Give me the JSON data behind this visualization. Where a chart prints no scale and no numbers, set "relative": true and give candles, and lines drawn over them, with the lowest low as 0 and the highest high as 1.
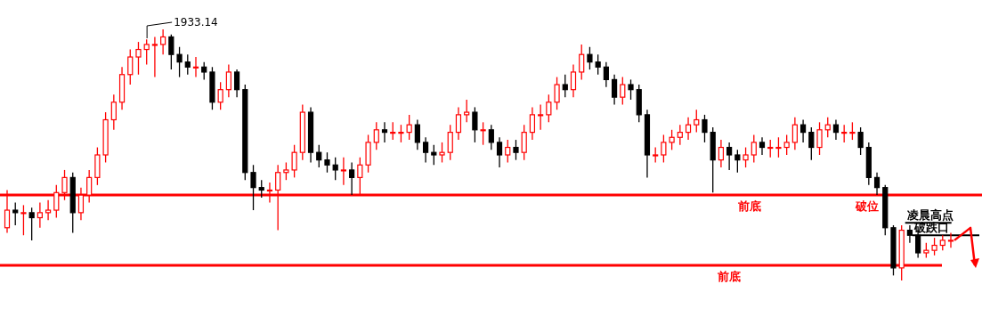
{
  "chart_data": {
    "type": "candlestick",
    "relative": true,
    "colors": [
      "#ff0000",
      "#000000",
      "#ff0000",
      "#000000",
      "#ff0000",
      "#ff0000",
      "#ff0000",
      "#ff0000",
      "#000000",
      "#ff0000",
      "#ff0000",
      "#ff0000",
      "#ff0000",
      "#ff0000",
      "#ff0000",
      "#ff0000",
      "#ff0000",
      "#ff0000",
      "#ff0000",
      "#ff0000",
      "#000000",
      "#000000",
      "#000000",
      "#ff0000",
      "#000000",
      "#000000",
      "#ff0000",
      "#ff0000",
      "#000000",
      "#000000",
      "#000000",
      "#000000",
      "#ff0000",
      "#ff0000",
      "#ff0000",
      "#ff0000",
      "#ff0000",
      "#000000",
      "#000000",
      "#000000",
      "#000000",
      "#ff0000",
      "#000000",
      "#ff0000",
      "#ff0000",
      "#ff0000",
      "#000000",
      "#ff0000",
      "#ff0000",
      "#ff0000",
      "#000000",
      "#000000",
      "#000000",
      "#ff0000",
      "#ff0000",
      "#ff0000",
      "#ff0000",
      "#000000",
      "#ff0000",
      "#000000",
      "#000000",
      "#ff0000",
      "#000000",
      "#ff0000",
      "#ff0000",
      "#ff0000",
      "#ff0000",
      "#ff0000",
      "#000000",
      "#ff0000",
      "#ff0000",
      "#000000",
      "#000000",
      "#000000",
      "#000000",
      "#ff0000",
      "#000000",
      "#000000",
      "#000000",
      "#ff0000",
      "#ff0000",
      "#ff0000",
      "#ff0000",
      "#ff0000",
      "#ff0000",
      "#000000",
      "#000000",
      "#ff0000",
      "#000000",
      "#000000",
      "#ff0000",
      "#ff0000",
      "#000000",
      "#ff0000",
      "#ff0000",
      "#ff0000",
      "#ff0000",
      "#000000",
      "#000000",
      "#ff0000",
      "#ff0000",
      "#000000",
      "#ff0000",
      "#ff0000",
      "#000000",
      "#000000",
      "#000000",
      "#000000",
      "#000000",
      "#ff0000",
      "#000000",
      "#000000",
      "#ff0000",
      "#ff0000",
      "#ff0000",
      "#ff0000"
    ],
    "categories": [
      null,
      null,
      null,
      null,
      null,
      null,
      null,
      null,
      null,
      null,
      null,
      null,
      null,
      null,
      null,
      null,
      null,
      null,
      null,
      null,
      null,
      null,
      null,
      null,
      null,
      null,
      null,
      null,
      null,
      null,
      null,
      null,
      null,
      null,
      null,
      null,
      null,
      null,
      null,
      null,
      null,
      null,
      null,
      null,
      null,
      null,
      null,
      null,
      null,
      null,
      null,
      null,
      null,
      null,
      null,
      null,
      null,
      null,
      null,
      null,
      null,
      null,
      null,
      null,
      null,
      null,
      null,
      null,
      null,
      null,
      null,
      null,
      null,
      null,
      null,
      null,
      null,
      null,
      null,
      null,
      null,
      null,
      null,
      null,
      null,
      null,
      null,
      null,
      null,
      null,
      null,
      null,
      null,
      null,
      null,
      null,
      null,
      null,
      null,
      null,
      null,
      null,
      null,
      null,
      null,
      null,
      null,
      null,
      null,
      null,
      null,
      null,
      null,
      null,
      null,
      null
    ],
    "ohlc": [
      [
        0.21,
        0.36,
        0.19,
        0.28
      ],
      [
        0.28,
        0.31,
        0.22,
        0.27
      ],
      [
        0.27,
        0.3,
        0.18,
        0.27
      ],
      [
        0.27,
        0.29,
        0.16,
        0.25
      ],
      [
        0.25,
        0.31,
        0.21,
        0.27
      ],
      [
        0.27,
        0.32,
        0.24,
        0.28
      ],
      [
        0.28,
        0.38,
        0.25,
        0.35
      ],
      [
        0.35,
        0.44,
        0.32,
        0.41
      ],
      [
        0.41,
        0.43,
        0.19,
        0.27
      ],
      [
        0.27,
        0.37,
        0.24,
        0.34
      ],
      [
        0.34,
        0.44,
        0.31,
        0.41
      ],
      [
        0.41,
        0.53,
        0.38,
        0.5
      ],
      [
        0.5,
        0.67,
        0.47,
        0.64
      ],
      [
        0.64,
        0.74,
        0.6,
        0.71
      ],
      [
        0.71,
        0.85,
        0.68,
        0.82
      ],
      [
        0.82,
        0.92,
        0.78,
        0.89
      ],
      [
        0.89,
        0.95,
        0.82,
        0.92
      ],
      [
        0.92,
        0.96,
        0.86,
        0.94
      ],
      [
        0.94,
        0.97,
        0.81,
        0.94
      ],
      [
        0.94,
        1.0,
        0.9,
        0.97
      ],
      [
        0.97,
        0.98,
        0.84,
        0.9
      ],
      [
        0.9,
        0.93,
        0.81,
        0.87
      ],
      [
        0.87,
        0.9,
        0.82,
        0.85
      ],
      [
        0.85,
        0.89,
        0.81,
        0.85
      ],
      [
        0.85,
        0.87,
        0.8,
        0.83
      ],
      [
        0.83,
        0.85,
        0.68,
        0.71
      ],
      [
        0.71,
        0.79,
        0.68,
        0.76
      ],
      [
        0.76,
        0.86,
        0.73,
        0.83
      ],
      [
        0.83,
        0.84,
        0.73,
        0.76
      ],
      [
        0.76,
        0.78,
        0.4,
        0.43
      ],
      [
        0.43,
        0.46,
        0.28,
        0.37
      ],
      [
        0.37,
        0.4,
        0.33,
        0.36
      ],
      [
        0.36,
        0.39,
        0.31,
        0.36
      ],
      [
        0.36,
        0.46,
        0.2,
        0.43
      ],
      [
        0.43,
        0.47,
        0.4,
        0.44
      ],
      [
        0.44,
        0.54,
        0.41,
        0.51
      ],
      [
        0.51,
        0.7,
        0.48,
        0.67
      ],
      [
        0.67,
        0.69,
        0.47,
        0.51
      ],
      [
        0.51,
        0.54,
        0.45,
        0.48
      ],
      [
        0.48,
        0.51,
        0.43,
        0.46
      ],
      [
        0.46,
        0.49,
        0.4,
        0.44
      ],
      [
        0.44,
        0.49,
        0.38,
        0.44
      ],
      [
        0.44,
        0.47,
        0.34,
        0.41
      ],
      [
        0.41,
        0.49,
        0.34,
        0.46
      ],
      [
        0.46,
        0.58,
        0.43,
        0.55
      ],
      [
        0.55,
        0.63,
        0.52,
        0.6
      ],
      [
        0.6,
        0.63,
        0.55,
        0.59
      ],
      [
        0.59,
        0.63,
        0.56,
        0.59
      ],
      [
        0.59,
        0.62,
        0.55,
        0.59
      ],
      [
        0.59,
        0.66,
        0.56,
        0.62
      ],
      [
        0.62,
        0.64,
        0.52,
        0.55
      ],
      [
        0.55,
        0.57,
        0.47,
        0.51
      ],
      [
        0.51,
        0.54,
        0.46,
        0.5
      ],
      [
        0.5,
        0.55,
        0.47,
        0.51
      ],
      [
        0.51,
        0.62,
        0.48,
        0.59
      ],
      [
        0.59,
        0.69,
        0.56,
        0.66
      ],
      [
        0.66,
        0.72,
        0.63,
        0.67
      ],
      [
        0.67,
        0.69,
        0.55,
        0.6
      ],
      [
        0.6,
        0.63,
        0.54,
        0.6
      ],
      [
        0.6,
        0.62,
        0.52,
        0.55
      ],
      [
        0.55,
        0.57,
        0.45,
        0.5
      ],
      [
        0.5,
        0.56,
        0.47,
        0.53
      ],
      [
        0.53,
        0.56,
        0.48,
        0.51
      ],
      [
        0.51,
        0.62,
        0.48,
        0.59
      ],
      [
        0.59,
        0.69,
        0.56,
        0.66
      ],
      [
        0.66,
        0.7,
        0.6,
        0.66
      ],
      [
        0.66,
        0.74,
        0.63,
        0.71
      ],
      [
        0.71,
        0.81,
        0.68,
        0.78
      ],
      [
        0.78,
        0.82,
        0.73,
        0.76
      ],
      [
        0.76,
        0.86,
        0.73,
        0.83
      ],
      [
        0.83,
        0.94,
        0.8,
        0.9
      ],
      [
        0.9,
        0.93,
        0.84,
        0.87
      ],
      [
        0.87,
        0.9,
        0.82,
        0.85
      ],
      [
        0.85,
        0.87,
        0.77,
        0.8
      ],
      [
        0.8,
        0.82,
        0.7,
        0.73
      ],
      [
        0.73,
        0.81,
        0.7,
        0.78
      ],
      [
        0.78,
        0.8,
        0.72,
        0.76
      ],
      [
        0.76,
        0.78,
        0.63,
        0.66
      ],
      [
        0.66,
        0.68,
        0.41,
        0.5
      ],
      [
        0.5,
        0.53,
        0.47,
        0.5
      ],
      [
        0.5,
        0.58,
        0.47,
        0.55
      ],
      [
        0.55,
        0.6,
        0.52,
        0.57
      ],
      [
        0.57,
        0.62,
        0.54,
        0.59
      ],
      [
        0.59,
        0.65,
        0.56,
        0.62
      ],
      [
        0.62,
        0.68,
        0.59,
        0.64
      ],
      [
        0.64,
        0.66,
        0.55,
        0.59
      ],
      [
        0.59,
        0.61,
        0.35,
        0.48
      ],
      [
        0.48,
        0.56,
        0.45,
        0.53
      ],
      [
        0.53,
        0.55,
        0.44,
        0.5
      ],
      [
        0.5,
        0.52,
        0.43,
        0.48
      ],
      [
        0.48,
        0.53,
        0.45,
        0.5
      ],
      [
        0.5,
        0.58,
        0.47,
        0.55
      ],
      [
        0.55,
        0.57,
        0.5,
        0.53
      ],
      [
        0.53,
        0.56,
        0.49,
        0.53
      ],
      [
        0.53,
        0.57,
        0.49,
        0.53
      ],
      [
        0.53,
        0.58,
        0.5,
        0.55
      ],
      [
        0.55,
        0.65,
        0.52,
        0.62
      ],
      [
        0.62,
        0.64,
        0.55,
        0.59
      ],
      [
        0.59,
        0.61,
        0.48,
        0.53
      ],
      [
        0.53,
        0.63,
        0.5,
        0.6
      ],
      [
        0.6,
        0.65,
        0.57,
        0.62
      ],
      [
        0.62,
        0.64,
        0.56,
        0.59
      ],
      [
        0.59,
        0.62,
        0.55,
        0.59
      ],
      [
        0.59,
        0.63,
        0.56,
        0.59
      ],
      [
        0.59,
        0.61,
        0.5,
        0.53
      ],
      [
        0.53,
        0.55,
        0.38,
        0.41
      ],
      [
        0.41,
        0.43,
        0.34,
        0.37
      ],
      [
        0.37,
        0.38,
        0.18,
        0.21
      ],
      [
        0.21,
        0.22,
        0.02,
        0.05
      ],
      [
        0.05,
        0.22,
        0.0,
        0.2
      ],
      [
        0.2,
        0.22,
        0.15,
        0.18
      ],
      [
        0.18,
        0.2,
        0.09,
        0.11
      ],
      [
        0.11,
        0.15,
        0.09,
        0.12
      ],
      [
        0.12,
        0.17,
        0.1,
        0.14
      ],
      [
        0.14,
        0.18,
        0.12,
        0.16
      ],
      [
        0.16,
        0.19,
        0.13,
        0.16
      ]
    ],
    "ref_lines": [
      {
        "axis": "y",
        "value": 0.34,
        "label": "前底",
        "color": "#ff0000"
      },
      {
        "axis": "y",
        "value": 0.06,
        "label": "前底",
        "color": "#ff0000"
      },
      {
        "axis": "y",
        "value": 0.23,
        "label": "凌晨高点",
        "color": "#000000"
      },
      {
        "axis": "y",
        "value": 0.18,
        "label": "破跌口",
        "color": "#000000"
      }
    ],
    "annotations": [
      "1933.14",
      "破位"
    ]
  }
}
